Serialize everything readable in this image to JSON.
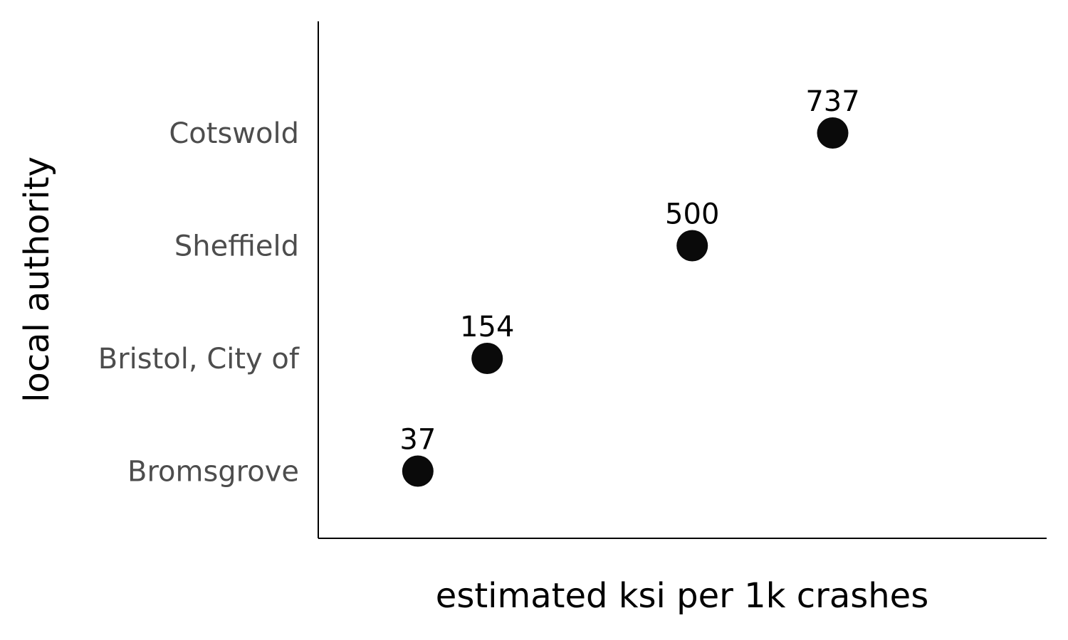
{
  "chart_data": {
    "type": "scatter",
    "xlabel": "estimated ksi per 1k crashes",
    "ylabel": "local authority",
    "categories": [
      "Bromsgrove",
      "Bristol, City of",
      "Sheffield",
      "Cotswold"
    ],
    "values": [
      37,
      154,
      500,
      737
    ],
    "data_labels": [
      "37",
      "154",
      "500",
      "737"
    ],
    "xlim": [
      -131,
      1098
    ],
    "x_ticks_shown": false,
    "grid": false,
    "legend": "none",
    "colors": {
      "point": "#0a0a0a",
      "axis": "#000000",
      "tick_label": "#4d4d4d"
    }
  }
}
